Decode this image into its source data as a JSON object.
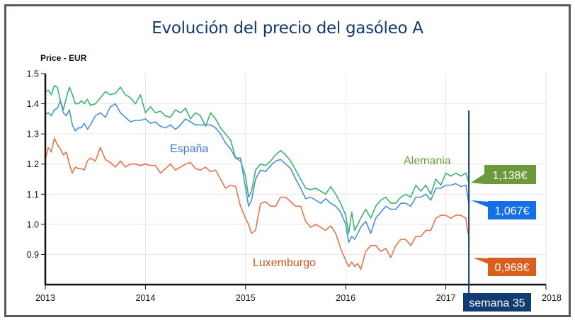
{
  "chart_data": {
    "type": "line",
    "title": "Evolución del precio del gasóleo A",
    "ylabel": "Price - EUR",
    "xlabel": "",
    "xlim": [
      2013,
      2018
    ],
    "ylim": [
      0.8,
      1.5
    ],
    "x_ticks": [
      "2013",
      "2014",
      "2015",
      "2016",
      "2017",
      "2018"
    ],
    "y_ticks": [
      "1.5",
      "1.4",
      "1.3",
      "1.2",
      "1.1",
      "1.0",
      "0.9"
    ],
    "grid": true,
    "legend": "inline labels",
    "colors": {
      "Alemania": "#3cb371",
      "España": "#4a90d9",
      "Luxemburgo": "#e8734a",
      "Alemania_label": "#6a9a3a",
      "España_label": "#3d7bd0",
      "Luxemburgo_label": "#d2541e",
      "Alemania_badge": "#6a9a3a",
      "España_badge": "#1570e6",
      "Luxemburgo_badge": "#d9601c",
      "marker": "#123a73",
      "title": "#123a73"
    },
    "series": [
      {
        "name": "Alemania",
        "x": [
          2013.0,
          2013.03,
          2013.06,
          2013.09,
          2013.12,
          2013.15,
          2013.18,
          2013.21,
          2013.24,
          2013.27,
          2013.3,
          2013.33,
          2013.36,
          2013.39,
          2013.42,
          2013.45,
          2013.5,
          2013.55,
          2013.6,
          2013.65,
          2013.7,
          2013.75,
          2013.8,
          2013.85,
          2013.9,
          2013.95,
          2014.0,
          2014.05,
          2014.1,
          2014.15,
          2014.2,
          2014.25,
          2014.3,
          2014.35,
          2014.4,
          2014.45,
          2014.5,
          2014.55,
          2014.6,
          2014.65,
          2014.7,
          2014.75,
          2014.8,
          2014.85,
          2014.9,
          2014.95,
          2015.0,
          2015.03,
          2015.06,
          2015.1,
          2015.15,
          2015.2,
          2015.25,
          2015.3,
          2015.35,
          2015.4,
          2015.45,
          2015.5,
          2015.55,
          2015.6,
          2015.65,
          2015.7,
          2015.75,
          2015.8,
          2015.85,
          2015.9,
          2015.95,
          2016.0,
          2016.03,
          2016.06,
          2016.09,
          2016.12,
          2016.15,
          2016.2,
          2016.25,
          2016.3,
          2016.35,
          2016.4,
          2016.45,
          2016.5,
          2016.55,
          2016.6,
          2016.65,
          2016.7,
          2016.75,
          2016.8,
          2016.85,
          2016.9,
          2016.95,
          2017.0,
          2017.05,
          2017.1,
          2017.15,
          2017.2,
          2017.23
        ],
        "values": [
          1.44,
          1.445,
          1.43,
          1.46,
          1.455,
          1.41,
          1.38,
          1.42,
          1.455,
          1.43,
          1.4,
          1.4,
          1.41,
          1.4,
          1.415,
          1.395,
          1.4,
          1.42,
          1.44,
          1.43,
          1.435,
          1.455,
          1.43,
          1.42,
          1.4,
          1.43,
          1.37,
          1.39,
          1.37,
          1.375,
          1.36,
          1.355,
          1.38,
          1.37,
          1.385,
          1.35,
          1.37,
          1.36,
          1.325,
          1.37,
          1.35,
          1.32,
          1.3,
          1.28,
          1.22,
          1.21,
          1.16,
          1.09,
          1.11,
          1.18,
          1.2,
          1.195,
          1.21,
          1.23,
          1.245,
          1.23,
          1.21,
          1.18,
          1.15,
          1.12,
          1.115,
          1.12,
          1.11,
          1.1,
          1.125,
          1.1,
          1.07,
          1.03,
          0.97,
          1.04,
          0.98,
          1.0,
          1.02,
          1.05,
          1.02,
          1.06,
          1.08,
          1.09,
          1.07,
          1.07,
          1.09,
          1.1,
          1.09,
          1.13,
          1.11,
          1.13,
          1.1,
          1.15,
          1.13,
          1.17,
          1.16,
          1.17,
          1.16,
          1.17,
          1.138
        ]
      },
      {
        "name": "España",
        "x": [
          2013.0,
          2013.03,
          2013.06,
          2013.09,
          2013.12,
          2013.15,
          2013.18,
          2013.21,
          2013.24,
          2013.27,
          2013.3,
          2013.33,
          2013.36,
          2013.39,
          2013.42,
          2013.45,
          2013.5,
          2013.55,
          2013.6,
          2013.65,
          2013.7,
          2013.75,
          2013.8,
          2013.85,
          2013.9,
          2013.95,
          2014.0,
          2014.05,
          2014.1,
          2014.15,
          2014.2,
          2014.25,
          2014.3,
          2014.35,
          2014.4,
          2014.45,
          2014.5,
          2014.55,
          2014.6,
          2014.65,
          2014.7,
          2014.75,
          2014.8,
          2014.85,
          2014.9,
          2014.95,
          2015.0,
          2015.03,
          2015.06,
          2015.1,
          2015.15,
          2015.2,
          2015.25,
          2015.3,
          2015.35,
          2015.4,
          2015.45,
          2015.5,
          2015.55,
          2015.6,
          2015.65,
          2015.7,
          2015.75,
          2015.8,
          2015.85,
          2015.9,
          2015.95,
          2016.0,
          2016.03,
          2016.06,
          2016.09,
          2016.12,
          2016.15,
          2016.2,
          2016.25,
          2016.3,
          2016.35,
          2016.4,
          2016.45,
          2016.5,
          2016.55,
          2016.6,
          2016.65,
          2016.7,
          2016.75,
          2016.8,
          2016.85,
          2016.9,
          2016.95,
          2017.0,
          2017.05,
          2017.1,
          2017.15,
          2017.2,
          2017.23
        ],
        "values": [
          1.365,
          1.37,
          1.36,
          1.38,
          1.385,
          1.41,
          1.37,
          1.36,
          1.38,
          1.33,
          1.31,
          1.32,
          1.32,
          1.335,
          1.315,
          1.33,
          1.36,
          1.37,
          1.355,
          1.39,
          1.4,
          1.37,
          1.355,
          1.34,
          1.345,
          1.345,
          1.35,
          1.335,
          1.34,
          1.325,
          1.32,
          1.33,
          1.315,
          1.33,
          1.35,
          1.34,
          1.33,
          1.33,
          1.33,
          1.33,
          1.32,
          1.3,
          1.27,
          1.25,
          1.22,
          1.22,
          1.12,
          1.06,
          1.08,
          1.15,
          1.18,
          1.175,
          1.195,
          1.21,
          1.215,
          1.2,
          1.185,
          1.15,
          1.12,
          1.085,
          1.09,
          1.08,
          1.07,
          1.085,
          1.07,
          1.06,
          1.04,
          1.0,
          0.94,
          0.96,
          0.95,
          0.97,
          0.99,
          1.01,
          0.97,
          1.02,
          1.04,
          1.06,
          1.05,
          1.05,
          1.07,
          1.07,
          1.06,
          1.09,
          1.09,
          1.1,
          1.08,
          1.12,
          1.12,
          1.13,
          1.13,
          1.135,
          1.125,
          1.13,
          1.067
        ]
      },
      {
        "name": "Luxemburgo",
        "x": [
          2013.0,
          2013.03,
          2013.06,
          2013.09,
          2013.12,
          2013.15,
          2013.18,
          2013.21,
          2013.24,
          2013.27,
          2013.3,
          2013.33,
          2013.36,
          2013.39,
          2013.42,
          2013.45,
          2013.5,
          2013.55,
          2013.6,
          2013.65,
          2013.7,
          2013.75,
          2013.8,
          2013.85,
          2013.9,
          2013.95,
          2014.0,
          2014.05,
          2014.1,
          2014.15,
          2014.2,
          2014.25,
          2014.3,
          2014.35,
          2014.4,
          2014.45,
          2014.5,
          2014.55,
          2014.6,
          2014.65,
          2014.7,
          2014.75,
          2014.8,
          2014.85,
          2014.9,
          2014.95,
          2015.0,
          2015.03,
          2015.06,
          2015.1,
          2015.15,
          2015.2,
          2015.25,
          2015.3,
          2015.35,
          2015.4,
          2015.45,
          2015.5,
          2015.55,
          2015.6,
          2015.65,
          2015.7,
          2015.75,
          2015.8,
          2015.85,
          2015.9,
          2015.95,
          2016.0,
          2016.03,
          2016.06,
          2016.09,
          2016.12,
          2016.15,
          2016.2,
          2016.25,
          2016.3,
          2016.35,
          2016.4,
          2016.45,
          2016.5,
          2016.55,
          2016.6,
          2016.65,
          2016.7,
          2016.75,
          2016.8,
          2016.85,
          2016.9,
          2016.95,
          2017.0,
          2017.05,
          2017.1,
          2017.15,
          2017.2,
          2017.22,
          2017.23
        ],
        "values": [
          1.215,
          1.255,
          1.24,
          1.285,
          1.265,
          1.25,
          1.23,
          1.24,
          1.2,
          1.17,
          1.19,
          1.185,
          1.185,
          1.18,
          1.21,
          1.22,
          1.21,
          1.255,
          1.215,
          1.205,
          1.19,
          1.21,
          1.19,
          1.2,
          1.2,
          1.195,
          1.2,
          1.195,
          1.195,
          1.17,
          1.185,
          1.2,
          1.18,
          1.19,
          1.2,
          1.205,
          1.185,
          1.18,
          1.19,
          1.175,
          1.18,
          1.15,
          1.12,
          1.13,
          1.125,
          1.06,
          1.02,
          1.0,
          0.97,
          0.98,
          1.07,
          1.075,
          1.06,
          1.06,
          1.09,
          1.09,
          1.075,
          1.06,
          1.06,
          1.01,
          0.99,
          1.0,
          0.99,
          0.98,
          0.995,
          0.97,
          0.92,
          0.88,
          0.86,
          0.875,
          0.86,
          0.87,
          0.85,
          0.91,
          0.93,
          0.93,
          0.91,
          0.92,
          0.89,
          0.93,
          0.95,
          0.95,
          0.93,
          0.96,
          0.96,
          0.98,
          0.98,
          1.02,
          1.03,
          1.03,
          1.02,
          1.03,
          1.03,
          1.02,
          0.97,
          0.968
        ]
      }
    ],
    "annotations": {
      "series_labels": [
        "España",
        "Alemania",
        "Luxemburgo"
      ],
      "values": {
        "Alemania": "1,138€",
        "España": "1,067€",
        "Luxemburgo": "0,968€"
      },
      "marker_label": "semana 35",
      "marker_x": 2017.23
    }
  }
}
